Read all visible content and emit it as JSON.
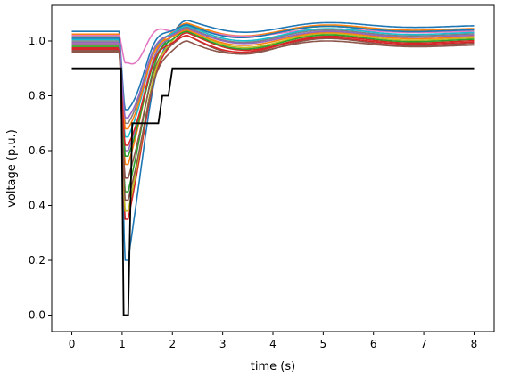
{
  "chart_data": {
    "type": "line",
    "title": "",
    "xlabel": "time (s)",
    "ylabel": "voltage (p.u.)",
    "xlim": [
      -0.4,
      8.4
    ],
    "ylim": [
      -0.06,
      1.13
    ],
    "xticks": [
      0,
      1,
      2,
      3,
      4,
      5,
      6,
      7,
      8
    ],
    "yticks": [
      0.0,
      0.2,
      0.4,
      0.6,
      0.8,
      1.0
    ],
    "xtick_labels": [
      "0",
      "1",
      "2",
      "3",
      "4",
      "5",
      "6",
      "7",
      "8"
    ],
    "ytick_labels": [
      "0.0",
      "0.2",
      "0.4",
      "0.6",
      "0.8",
      "1.0"
    ],
    "grid": false,
    "legend": "none",
    "threshold_series": {
      "color": "#000000",
      "points": [
        [
          0,
          0.9
        ],
        [
          0.98,
          0.9
        ],
        [
          1.03,
          0.0
        ],
        [
          1.12,
          0.0
        ],
        [
          1.2,
          0.7
        ],
        [
          1.72,
          0.7
        ],
        [
          1.8,
          0.8
        ],
        [
          1.92,
          0.8
        ],
        [
          2.0,
          0.9
        ],
        [
          8.0,
          0.9
        ]
      ]
    },
    "series": [
      {
        "color": "#1f77b4",
        "pre": 1.035,
        "dip": 0.2,
        "recover_peak": 1.075,
        "settle": 1.055,
        "amp": 0.025,
        "phase": 0.0
      },
      {
        "color": "#ff7f0e",
        "pre": 1.025,
        "dip": 0.55,
        "recover_peak": 1.065,
        "settle": 1.045,
        "amp": 0.03,
        "phase": 0.2
      },
      {
        "color": "#2ca02c",
        "pre": 1.015,
        "dip": 0.45,
        "recover_peak": 1.06,
        "settle": 1.04,
        "amp": 0.03,
        "phase": 0.4
      },
      {
        "color": "#d62728",
        "pre": 0.975,
        "dip": 0.35,
        "recover_peak": 1.03,
        "settle": 1.0,
        "amp": 0.035,
        "phase": 0.1
      },
      {
        "color": "#9467bd",
        "pre": 0.995,
        "dip": 0.6,
        "recover_peak": 1.045,
        "settle": 1.02,
        "amp": 0.03,
        "phase": 0.3
      },
      {
        "color": "#8c564b",
        "pre": 0.965,
        "dip": 0.5,
        "recover_peak": 1.02,
        "settle": 0.99,
        "amp": 0.04,
        "phase": 0.5
      },
      {
        "color": "#e377c2",
        "pre": 1.02,
        "dip": 0.92,
        "recover_peak": 1.05,
        "settle": 1.035,
        "amp": 0.02,
        "phase": 0.0
      },
      {
        "color": "#7f7f7f",
        "pre": 1.0,
        "dip": 0.7,
        "recover_peak": 1.05,
        "settle": 1.025,
        "amp": 0.03,
        "phase": 0.6
      },
      {
        "color": "#bcbd22",
        "pre": 0.985,
        "dip": 0.38,
        "recover_peak": 1.04,
        "settle": 1.01,
        "amp": 0.035,
        "phase": 0.2
      },
      {
        "color": "#17becf",
        "pre": 1.005,
        "dip": 0.65,
        "recover_peak": 1.055,
        "settle": 1.03,
        "amp": 0.03,
        "phase": 0.4
      },
      {
        "color": "#1f77b4",
        "pre": 1.01,
        "dip": 0.75,
        "recover_peak": 1.06,
        "settle": 1.04,
        "amp": 0.03,
        "phase": 0.7
      },
      {
        "color": "#ff7f0e",
        "pre": 0.99,
        "dip": 0.68,
        "recover_peak": 1.04,
        "settle": 1.015,
        "amp": 0.035,
        "phase": 0.1
      },
      {
        "color": "#2ca02c",
        "pre": 0.98,
        "dip": 0.58,
        "recover_peak": 1.035,
        "settle": 1.005,
        "amp": 0.035,
        "phase": 0.3
      },
      {
        "color": "#d62728",
        "pre": 0.97,
        "dip": 0.62,
        "recover_peak": 1.02,
        "settle": 0.995,
        "amp": 0.04,
        "phase": 0.5
      },
      {
        "color": "#9467bd",
        "pre": 0.99,
        "dip": 0.72,
        "recover_peak": 1.045,
        "settle": 1.02,
        "amp": 0.03,
        "phase": 0.2
      },
      {
        "color": "#8c564b",
        "pre": 0.96,
        "dip": 0.42,
        "recover_peak": 1.0,
        "settle": 0.985,
        "amp": 0.04,
        "phase": 0.6
      }
    ]
  }
}
